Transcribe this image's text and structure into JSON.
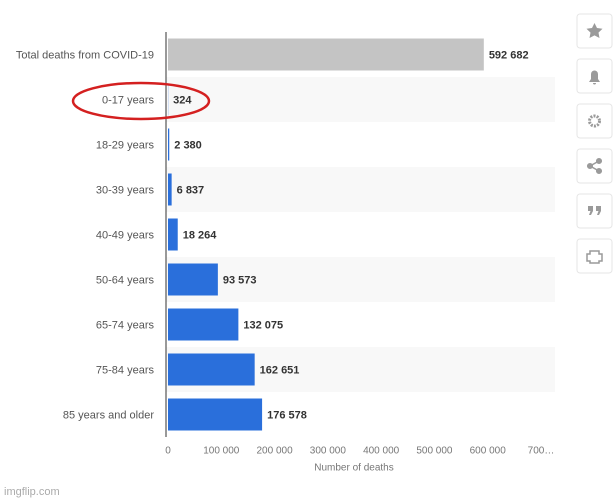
{
  "chart_data": {
    "type": "bar",
    "orientation": "horizontal",
    "categories": [
      "Total deaths from COVID-19",
      "0-17 years",
      "18-29 years",
      "30-39 years",
      "40-49 years",
      "50-64 years",
      "65-74 years",
      "75-84 years",
      "85 years and older"
    ],
    "values": [
      592682,
      324,
      2380,
      6837,
      18264,
      93573,
      132075,
      162651,
      176578
    ],
    "value_labels": [
      "592 682",
      "324",
      "2 380",
      "6 837",
      "18 264",
      "93 573",
      "132 075",
      "162 651",
      "176 578"
    ],
    "colors": [
      "#c4c4c4",
      "#2a6fdb",
      "#2a6fdb",
      "#2a6fdb",
      "#2a6fdb",
      "#2a6fdb",
      "#2a6fdb",
      "#2a6fdb",
      "#2a6fdb"
    ],
    "xlabel": "Number of deaths",
    "xlim": [
      0,
      700000
    ],
    "xticks": [
      0,
      {
        "value": 100000,
        "label": "100 000"
      },
      {
        "value": 200000,
        "label": "200 000"
      },
      {
        "value": 300000,
        "label": "300 000"
      },
      {
        "value": 400000,
        "label": "400 000"
      },
      {
        "value": 500000,
        "label": "500 000"
      },
      {
        "value": 600000,
        "label": "600 000"
      },
      {
        "value": 700000,
        "label": "700…"
      }
    ]
  },
  "watermark": "imgflip.com"
}
